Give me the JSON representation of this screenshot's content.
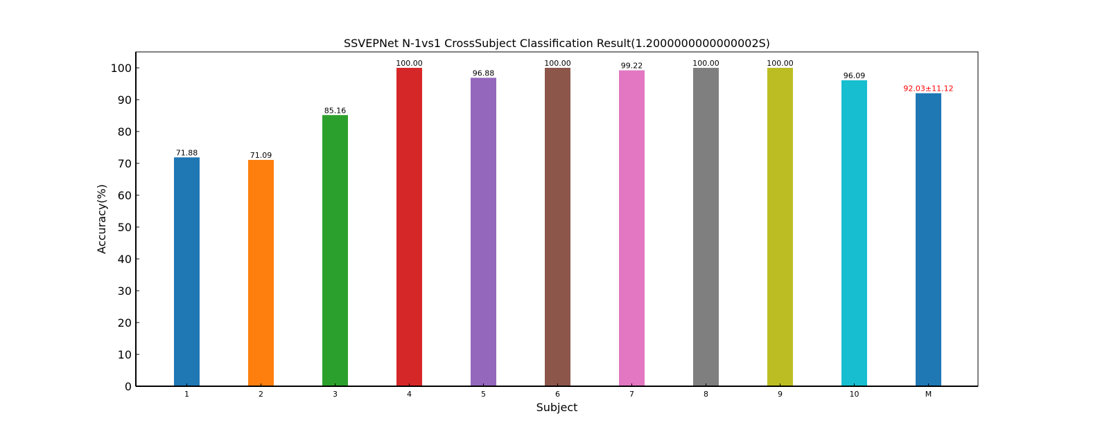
{
  "chart_data": {
    "type": "bar",
    "title": "SSVEPNet N-1vs1 CrossSubject Classification Result(1.2000000000000002S)",
    "xlabel": "Subject",
    "ylabel": "Accuracy(%)",
    "ylim": [
      0,
      105
    ],
    "yticks": [
      0,
      10,
      20,
      30,
      40,
      50,
      60,
      70,
      80,
      90,
      100
    ],
    "categories": [
      "1",
      "2",
      "3",
      "4",
      "5",
      "6",
      "7",
      "8",
      "9",
      "10",
      "M"
    ],
    "values": [
      71.88,
      71.09,
      85.16,
      100.0,
      96.88,
      100.0,
      99.22,
      100.0,
      100.0,
      96.09,
      92.03
    ],
    "value_labels": [
      "71.88",
      "71.09",
      "85.16",
      "100.00",
      "96.88",
      "100.00",
      "99.22",
      "100.00",
      "100.00",
      "96.09",
      "92.03±11.12"
    ],
    "colors": [
      "#1f77b4",
      "#ff7f0e",
      "#2ca02c",
      "#d62728",
      "#9467bd",
      "#8c564b",
      "#e377c2",
      "#7f7f7f",
      "#bcbd22",
      "#17becf",
      "#1f77b4"
    ],
    "label_colors": [
      "#000000",
      "#000000",
      "#000000",
      "#000000",
      "#000000",
      "#000000",
      "#000000",
      "#000000",
      "#000000",
      "#000000",
      "#ff0000"
    ],
    "grid": false,
    "legend": "none"
  }
}
